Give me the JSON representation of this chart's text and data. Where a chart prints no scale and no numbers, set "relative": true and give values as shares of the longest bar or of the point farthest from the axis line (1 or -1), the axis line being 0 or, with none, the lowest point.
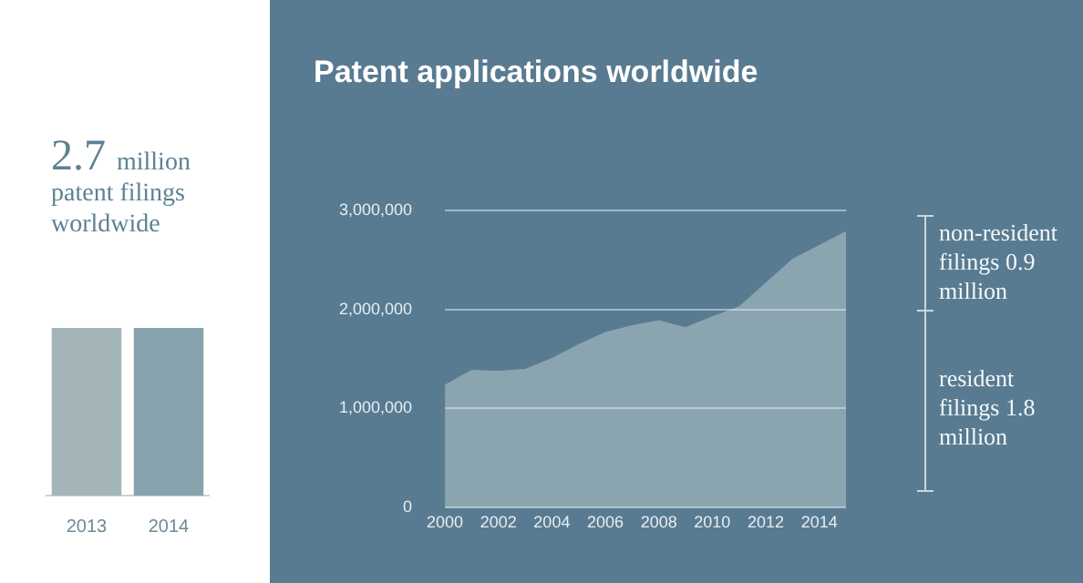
{
  "chart_data": [
    {
      "type": "bar",
      "title": "2.7 million patent filings worldwide",
      "categories": [
        "2013",
        "2014"
      ],
      "values": [
        1,
        1
      ],
      "colors": [
        "#a3b5b9",
        "#87a3ad"
      ],
      "relative": true
    },
    {
      "type": "area",
      "title": "Patent applications worldwide",
      "x": [
        2000,
        2001,
        2002,
        2003,
        2004,
        2005,
        2006,
        2007,
        2008,
        2009,
        2010,
        2011,
        2012,
        2013,
        2014,
        2015
      ],
      "series": [
        {
          "color": "#8ba5b0",
          "values": [
            1240000,
            1390000,
            1380000,
            1400000,
            1510000,
            1650000,
            1770000,
            1840000,
            1890000,
            1820000,
            1930000,
            2030000,
            2270000,
            2510000,
            2650000,
            2790000
          ]
        }
      ],
      "xlim": [
        2000,
        2015
      ],
      "xticks": [
        2000,
        2002,
        2004,
        2006,
        2008,
        2010,
        2012,
        2014
      ],
      "ylim": [
        0,
        3000000
      ],
      "yticks": [
        {
          "value": 0,
          "label": "0"
        },
        {
          "value": 1000000,
          "label": "1,000,000"
        },
        {
          "value": 2000000,
          "label": "2,000,000"
        },
        {
          "value": 3000000,
          "label": "3,000,000"
        }
      ],
      "grid": "y",
      "annotations": [
        "non-resident filings 0.9 million",
        "resident filings 1.8 million"
      ]
    }
  ]
}
